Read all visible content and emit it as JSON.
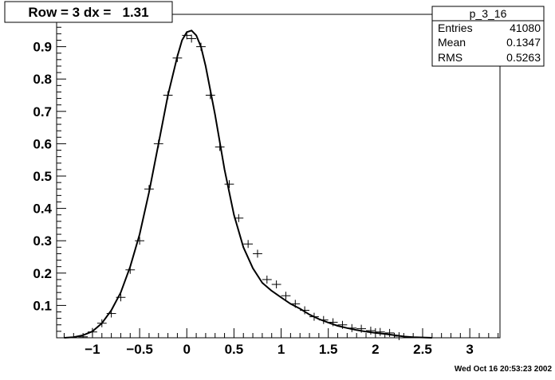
{
  "title_box": {
    "text": "Row = 3 dx =   1.31"
  },
  "stats": {
    "name": "p_3_16",
    "rows": [
      {
        "label": "Entries",
        "value": "41080"
      },
      {
        "label": "Mean",
        "value": "0.1347"
      },
      {
        "label": "RMS",
        "value": "0.5263"
      }
    ]
  },
  "footer": {
    "timestamp": "Wed Oct 16 20:53:23 2002"
  },
  "chart_data": {
    "type": "scatter",
    "title": "Row = 3 dx =   1.31",
    "xlabel": "",
    "ylabel": "",
    "xlim": [
      -1.38,
      3.32
    ],
    "ylim": [
      0,
      1.0
    ],
    "x_ticks": [
      -1,
      -0.5,
      0,
      0.5,
      1,
      1.5,
      2,
      2.5,
      3
    ],
    "x_tick_labels": [
      "−1",
      "−0.5",
      "0",
      "0.5",
      "1",
      "1.5",
      "2",
      "2.5",
      "3"
    ],
    "y_ticks": [
      0.1,
      0.2,
      0.3,
      0.4,
      0.5,
      0.6,
      0.7,
      0.8,
      0.9
    ],
    "y_tick_labels": [
      "0.1",
      "0.2",
      "0.3",
      "0.4",
      "0.5",
      "0.6",
      "0.7",
      "0.8",
      "0.9"
    ],
    "grid": false,
    "legend": "stats box top-right",
    "series": [
      {
        "kind": "points",
        "x_halfwidth": 0.05,
        "x": [
          -1.3,
          -1.2,
          -1.1,
          -1.0,
          -0.9,
          -0.8,
          -0.7,
          -0.6,
          -0.5,
          -0.4,
          -0.3,
          -0.2,
          -0.1,
          0.0,
          0.05,
          0.15,
          0.25,
          0.35,
          0.45,
          0.55,
          0.65,
          0.75,
          0.85,
          0.95,
          1.05,
          1.15,
          1.25,
          1.35,
          1.45,
          1.55,
          1.65,
          1.75,
          1.85,
          1.95,
          2.05,
          2.15,
          2.25,
          2.35,
          2.45,
          2.55,
          2.65,
          2.75,
          2.85,
          2.95,
          3.05,
          3.15,
          3.25
        ],
        "y": [
          0.0,
          0.0,
          0.003,
          0.018,
          0.045,
          0.075,
          0.125,
          0.21,
          0.3,
          0.46,
          0.6,
          0.75,
          0.865,
          0.935,
          0.925,
          0.9,
          0.75,
          0.59,
          0.475,
          0.37,
          0.29,
          0.26,
          0.18,
          0.165,
          0.13,
          0.105,
          0.085,
          0.065,
          0.055,
          0.048,
          0.04,
          0.03,
          0.028,
          0.022,
          0.018,
          0.015,
          0.005,
          0.002,
          0.0,
          0.0,
          0.0,
          0.0,
          0.0,
          0.0,
          0.0,
          0.0,
          0.0
        ]
      },
      {
        "kind": "curve",
        "x": [
          -1.3,
          -1.2,
          -1.1,
          -1.0,
          -0.9,
          -0.8,
          -0.7,
          -0.6,
          -0.5,
          -0.4,
          -0.3,
          -0.2,
          -0.1,
          -0.05,
          0.0,
          0.05,
          0.1,
          0.15,
          0.2,
          0.3,
          0.4,
          0.5,
          0.6,
          0.7,
          0.8,
          0.9,
          1.0,
          1.1,
          1.2,
          1.3,
          1.4,
          1.5,
          1.6,
          1.7,
          1.8,
          1.9,
          2.0,
          2.1,
          2.2,
          2.3,
          2.4,
          2.5,
          2.6
        ],
        "y": [
          0.0,
          0.002,
          0.008,
          0.02,
          0.045,
          0.085,
          0.14,
          0.22,
          0.32,
          0.45,
          0.6,
          0.75,
          0.87,
          0.92,
          0.945,
          0.95,
          0.935,
          0.9,
          0.84,
          0.69,
          0.52,
          0.38,
          0.28,
          0.215,
          0.17,
          0.145,
          0.125,
          0.105,
          0.09,
          0.072,
          0.058,
          0.047,
          0.037,
          0.03,
          0.024,
          0.019,
          0.015,
          0.012,
          0.008,
          0.004,
          0.002,
          0.001,
          0.0
        ]
      }
    ]
  }
}
